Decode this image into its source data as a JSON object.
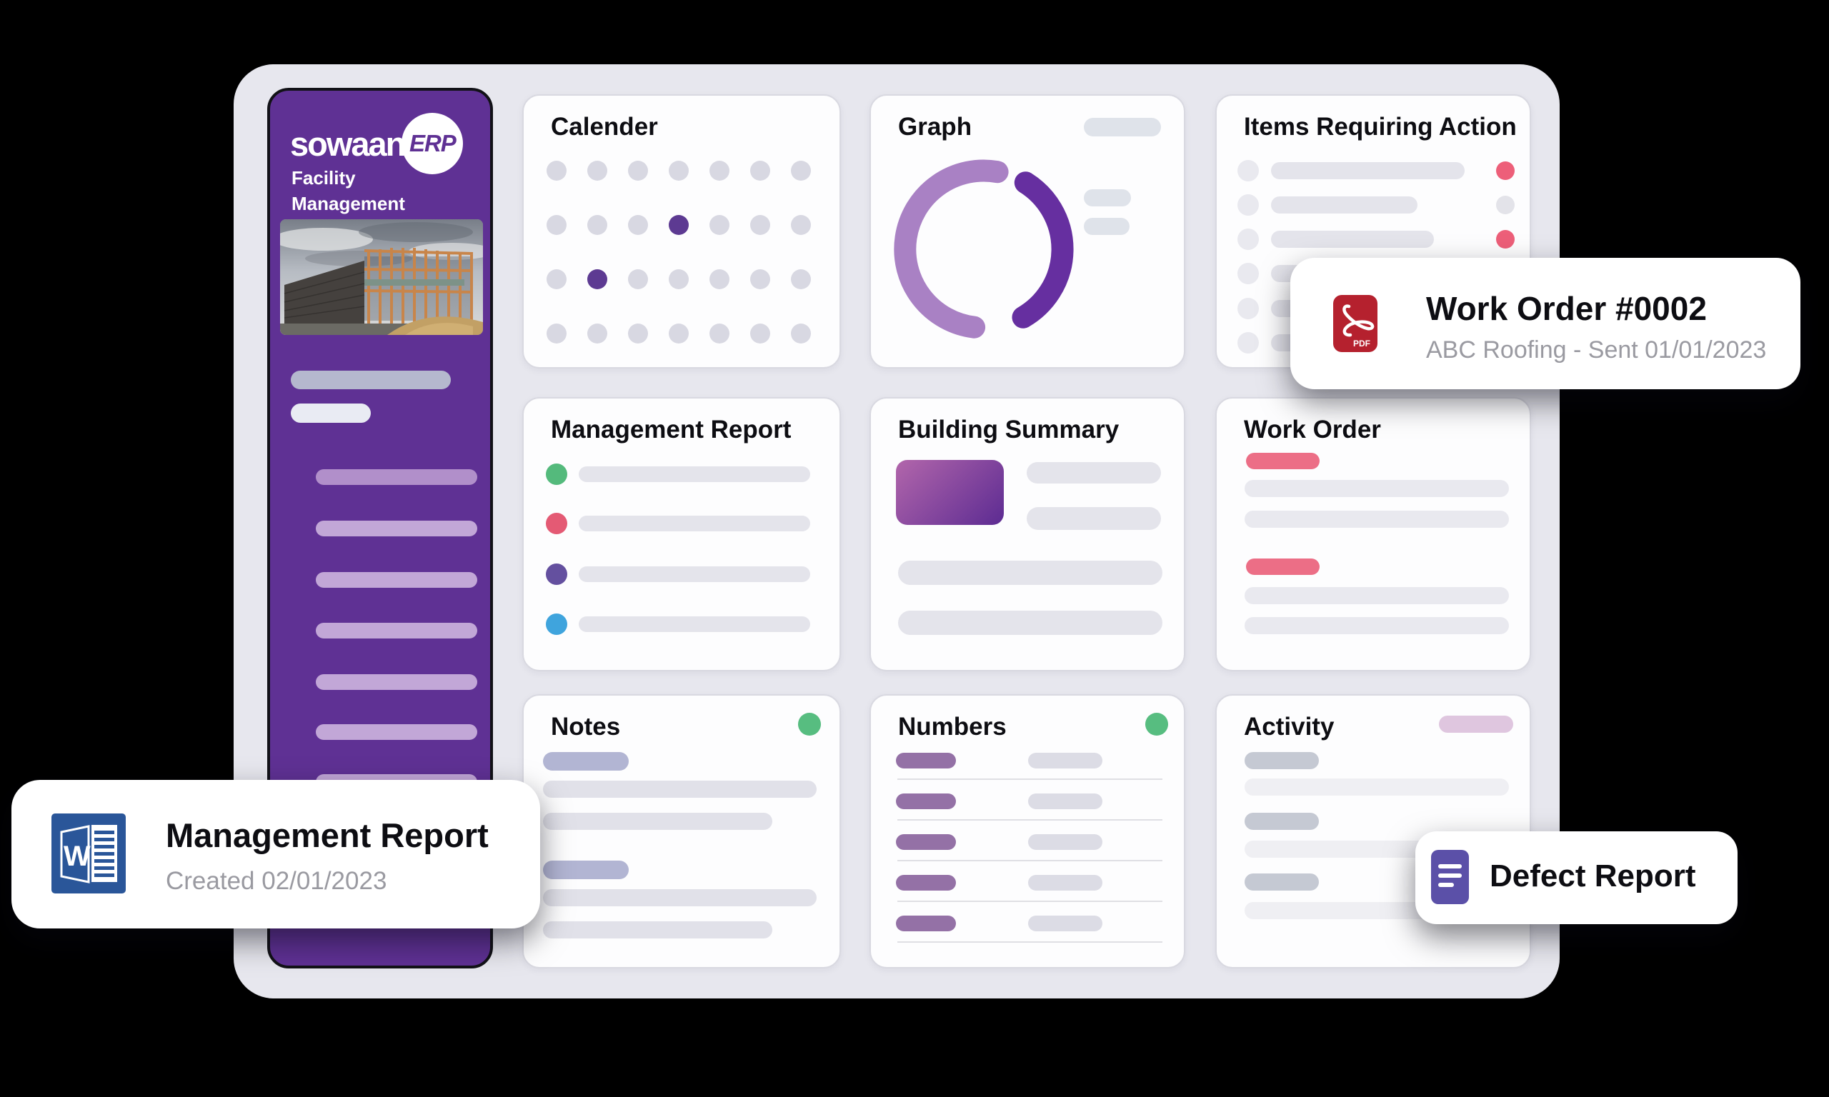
{
  "colors": {
    "canvas": "#000000",
    "panel_bg": "#e7e7ee",
    "card_bg": "#fdfdfe",
    "card_border": "#d9d9e1",
    "title_black": "#0d0d12",
    "subtitle_gray": "#9a9aa1",
    "sidebar_purple": "#5f3194",
    "sidebar_bar_gray": "#b5b8ce",
    "sidebar_bar_white": "#e9ebf3",
    "sidebar_menu_bar": "#c2a7d7",
    "sidebar_menu_bar_first": "#b18fca",
    "calendar_dot": "#d8d8e2",
    "calendar_dot_active": "#5d3a92",
    "donut_light": "#a981c4",
    "donut_dark": "#662fa0",
    "placeholder_pill": "#dfe3ea",
    "list_bar": "#e4e4eb",
    "list_circle": "#e9e9ef",
    "soft_bar": "#e9e9ef",
    "faint_bar": "#efeff3",
    "alert_red": "#ed5f79",
    "idle_dot": "#e3e3e9",
    "green_dot": "#57bd80",
    "building_grad_start": "#b266ab",
    "building_grad_end": "#5c2b92",
    "workorder_pink": "#ec6e86",
    "notes_accent": "#b2b5d3",
    "numbers_accent": "#9471a6",
    "activity_accent": "#c5c9d3",
    "activity_pill": "#dfc6df",
    "pdf_red": "#b5212e",
    "word_blue": "#2a5699",
    "defect_purple": "#5b50a8"
  },
  "sidebar": {
    "logo_text": "sowaan",
    "logo_badge": "ERP",
    "subtitle_line1": "Facility",
    "subtitle_line2": "Management",
    "menu_item_count": 7
  },
  "cards": {
    "calendar": {
      "title": "Calender",
      "rows": 4,
      "cols": 7,
      "highlighted": [
        [
          2,
          4
        ],
        [
          3,
          2
        ]
      ]
    },
    "graph": {
      "title": "Graph",
      "donut": {
        "light_arc": {
          "start_deg": 10,
          "end_deg": 187,
          "direction": "ccw"
        },
        "dark_arc": {
          "start_deg": 32,
          "end_deg": 150,
          "direction": "cw"
        }
      }
    },
    "items_requiring_action": {
      "title": "Items Requiring Action",
      "statuses": [
        "alert",
        "idle",
        "alert",
        "idle",
        "idle",
        "idle"
      ]
    },
    "management_report": {
      "title": "Management Report",
      "bullets": [
        "bullet_green",
        "bullet_red",
        "bullet_purple",
        "bullet_blue"
      ],
      "bullet_colors": {
        "bullet_green": "#54ba7c",
        "bullet_red": "#e45a74",
        "bullet_purple": "#64509f",
        "bullet_blue": "#3fa4dd"
      }
    },
    "building_summary": {
      "title": "Building Summary"
    },
    "work_order": {
      "title": "Work Order"
    },
    "notes": {
      "title": "Notes"
    },
    "numbers": {
      "title": "Numbers",
      "row_count": 5
    },
    "activity": {
      "title": "Activity"
    }
  },
  "floating": {
    "work_order": {
      "title": "Work Order #0002",
      "subtitle": "ABC Roofing - Sent 01/01/2023",
      "icon": "pdf-file-icon",
      "icon_label": "PDF"
    },
    "management_report": {
      "title": "Management Report",
      "subtitle": "Created 02/01/2023",
      "icon": "word-file-icon",
      "icon_letter": "W"
    },
    "defect_report": {
      "title": "Defect Report",
      "icon": "document-icon"
    }
  }
}
